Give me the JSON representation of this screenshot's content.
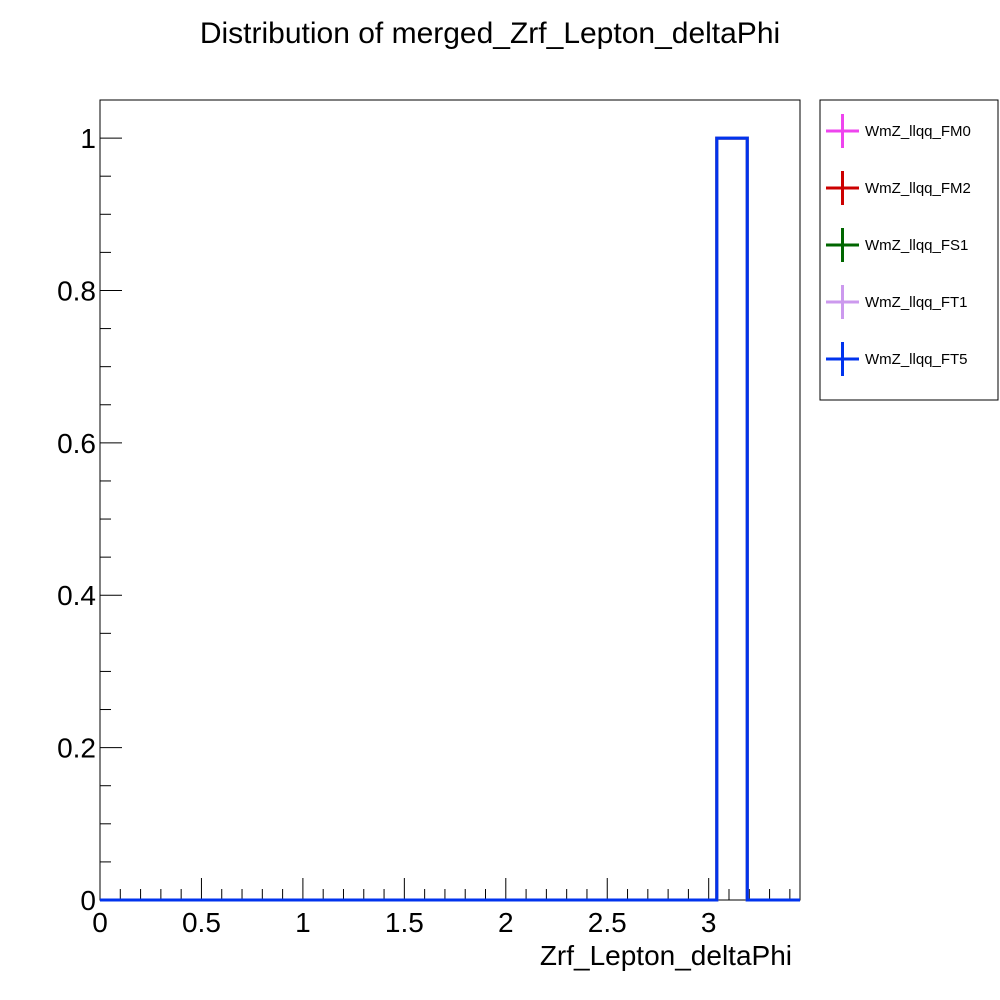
{
  "chart_data": {
    "type": "bar",
    "title": "Distribution of merged_Zrf_Lepton_deltaPhi",
    "xlabel": "Zrf_Lepton_deltaPhi",
    "ylabel": "",
    "xlim": [
      0,
      3.45
    ],
    "ylim": [
      0,
      1.05
    ],
    "x_major_ticks": [
      0,
      0.5,
      1,
      1.5,
      2,
      2.5,
      3
    ],
    "x_tick_labels": [
      "0",
      "0.5",
      "1",
      "1.5",
      "2",
      "2.5",
      "3"
    ],
    "y_major_ticks": [
      0,
      0.2,
      0.4,
      0.6,
      0.8,
      1
    ],
    "y_tick_labels": [
      "0",
      "0.2",
      "0.4",
      "0.6",
      "0.8",
      "1"
    ],
    "grid": false,
    "legend_position": "right",
    "series": [
      {
        "name": "WmZ_llqq_FM0",
        "color": "#ee44ee",
        "bins": [
          {
            "x0": 3.04,
            "x1": 3.19,
            "value": 1
          }
        ]
      },
      {
        "name": "WmZ_llqq_FM2",
        "color": "#cc0000",
        "bins": [
          {
            "x0": 3.04,
            "x1": 3.19,
            "value": 1
          }
        ]
      },
      {
        "name": "WmZ_llqq_FS1",
        "color": "#006600",
        "bins": [
          {
            "x0": 3.04,
            "x1": 3.19,
            "value": 1
          }
        ]
      },
      {
        "name": "WmZ_llqq_FT1",
        "color": "#cc99ee",
        "bins": [
          {
            "x0": 3.04,
            "x1": 3.19,
            "value": 1
          }
        ]
      },
      {
        "name": "WmZ_llqq_FT5",
        "color": "#0033ee",
        "bins": [
          {
            "x0": 3.04,
            "x1": 3.19,
            "value": 1
          }
        ]
      }
    ]
  }
}
